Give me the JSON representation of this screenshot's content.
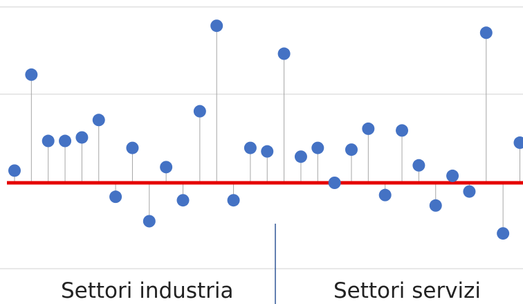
{
  "colors": {
    "marker": "#4472C4",
    "stem": "#a6a6a6",
    "baseline": "#e50000",
    "grid": "#d9d9d9",
    "divider": "#2f5597"
  },
  "chart_data": {
    "type": "scatter",
    "style": "lollipop (stem) plot",
    "baseline": 0,
    "ylim": [
      -5,
      10
    ],
    "grid": true,
    "y_tick_labels_visible": false,
    "groups": [
      {
        "label": "Settori industria",
        "range": [
          1,
          16
        ]
      },
      {
        "label": "Settori servizi",
        "range": [
          17,
          31
        ]
      }
    ],
    "x": [
      1,
      2,
      3,
      4,
      5,
      6,
      7,
      8,
      9,
      10,
      11,
      12,
      13,
      14,
      15,
      16,
      17,
      18,
      19,
      20,
      21,
      22,
      23,
      24,
      25,
      26,
      27,
      28,
      29,
      30,
      31
    ],
    "values": [
      0.7,
      6.2,
      2.4,
      2.4,
      2.6,
      3.6,
      -0.8,
      2.0,
      -2.2,
      0.9,
      -1.0,
      4.1,
      9.0,
      -1.0,
      2.0,
      1.8,
      7.4,
      1.5,
      2.0,
      0.0,
      1.9,
      3.1,
      -0.7,
      3.0,
      1.0,
      -1.3,
      0.4,
      -0.5,
      8.6,
      -2.9,
      2.3
    ]
  }
}
